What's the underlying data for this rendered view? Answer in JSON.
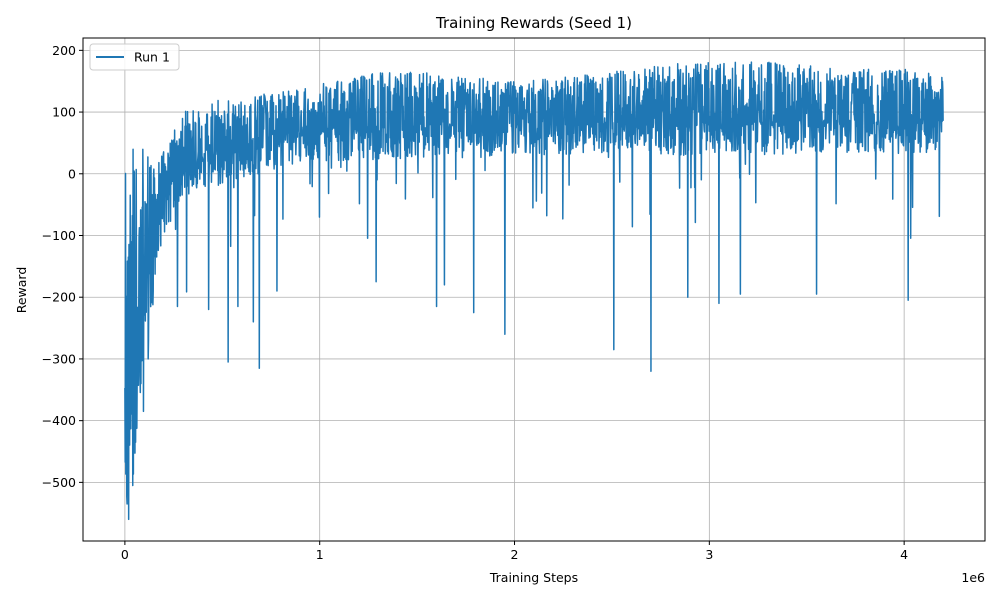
{
  "chart_data": {
    "type": "line",
    "title": "Training Rewards (Seed 1)",
    "xlabel": "Training Steps",
    "ylabel": "Reward",
    "x_offset_label": "1e6",
    "xlim": [
      -215000,
      4415000
    ],
    "ylim": [
      -595,
      220
    ],
    "x_ticks": [
      0,
      1000000,
      2000000,
      3000000,
      4000000
    ],
    "x_tick_labels": [
      "0",
      "1",
      "2",
      "3",
      "4"
    ],
    "y_ticks": [
      -500,
      -400,
      -300,
      -200,
      -100,
      0,
      100,
      200
    ],
    "y_tick_labels": [
      "−500",
      "−400",
      "−300",
      "−200",
      "−100",
      "0",
      "100",
      "200"
    ],
    "grid": true,
    "legend_position": "upper-left",
    "color": "#1f77b4",
    "series": [
      {
        "name": "Run 1",
        "x_start": 0,
        "x_end": 4200000,
        "num_points": 2600,
        "trend": [
          [
            0,
            -300
          ],
          [
            50000,
            -250
          ],
          [
            100000,
            -150
          ],
          [
            150000,
            -60
          ],
          [
            200000,
            -20
          ],
          [
            300000,
            10
          ],
          [
            450000,
            30
          ],
          [
            600000,
            45
          ],
          [
            800000,
            65
          ],
          [
            1000000,
            75
          ],
          [
            1500000,
            80
          ],
          [
            2000000,
            82
          ],
          [
            3000000,
            85
          ],
          [
            4000000,
            88
          ],
          [
            4200000,
            90
          ]
        ],
        "upper_envelope": [
          [
            0,
            30
          ],
          [
            50000,
            55
          ],
          [
            100000,
            40
          ],
          [
            150000,
            20
          ],
          [
            200000,
            40
          ],
          [
            300000,
            100
          ],
          [
            400000,
            115
          ],
          [
            600000,
            125
          ],
          [
            800000,
            133
          ],
          [
            1000000,
            145
          ],
          [
            1300000,
            165
          ],
          [
            1500000,
            165
          ],
          [
            2000000,
            150
          ],
          [
            2500000,
            165
          ],
          [
            2850000,
            180
          ],
          [
            3300000,
            182
          ],
          [
            3700000,
            170
          ],
          [
            4000000,
            170
          ],
          [
            4200000,
            160
          ]
        ],
        "dips": [
          [
            12000,
            -535
          ],
          [
            15000,
            -520
          ],
          [
            20000,
            -560
          ],
          [
            40000,
            -505
          ],
          [
            55000,
            -435
          ],
          [
            95000,
            -385
          ],
          [
            120000,
            -300
          ],
          [
            145000,
            -190
          ],
          [
            270000,
            -215
          ],
          [
            430000,
            -220
          ],
          [
            530000,
            -305
          ],
          [
            580000,
            -215
          ],
          [
            660000,
            -240
          ],
          [
            690000,
            -315
          ],
          [
            780000,
            -190
          ],
          [
            1290000,
            -175
          ],
          [
            1600000,
            -215
          ],
          [
            1640000,
            -180
          ],
          [
            1790000,
            -225
          ],
          [
            1950000,
            -260
          ],
          [
            2510000,
            -285
          ],
          [
            2700000,
            -320
          ],
          [
            2890000,
            -200
          ],
          [
            3050000,
            -210
          ],
          [
            3160000,
            -195
          ],
          [
            3550000,
            -195
          ],
          [
            4020000,
            -205
          ]
        ]
      }
    ]
  }
}
